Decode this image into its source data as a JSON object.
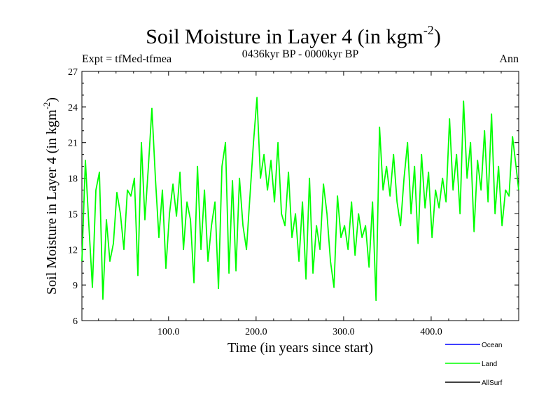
{
  "chart_data": {
    "type": "line",
    "title": "Soil Moisture in Layer 4 (in kgm",
    "title_sup": "-2",
    "title_end": ")",
    "subtitle_left": "Expt = tfMed-tfmea",
    "subtitle_center": "0436kyr BP - 0000kyr BP",
    "subtitle_right": "Ann",
    "xlabel": "Time (in years since start)",
    "ylabel": "Soil Moisture in Layer 4 (in kgm",
    "ylabel_sup": "-2",
    "ylabel_end": ")",
    "xlim": [
      1,
      500
    ],
    "ylim": [
      6,
      27
    ],
    "x_ticks": [
      {
        "value": 100,
        "label": "100.0"
      },
      {
        "value": 200,
        "label": "200.0"
      },
      {
        "value": 300,
        "label": "300.0"
      },
      {
        "value": 400,
        "label": "400.0"
      }
    ],
    "y_ticks": [
      {
        "value": 6,
        "label": "6"
      },
      {
        "value": 9,
        "label": "9"
      },
      {
        "value": 12,
        "label": "12"
      },
      {
        "value": 15,
        "label": "15"
      },
      {
        "value": 18,
        "label": "18"
      },
      {
        "value": 21,
        "label": "21"
      },
      {
        "value": 24,
        "label": "24"
      },
      {
        "value": 27,
        "label": "27"
      }
    ],
    "grid": false,
    "legend_position": "bottom-right",
    "series": [
      {
        "name": "Ocean",
        "color": "#0000ff",
        "x": [],
        "values": []
      },
      {
        "name": "Land",
        "color": "#00ff00",
        "x": [
          1,
          5,
          9,
          13,
          17,
          21,
          25,
          29,
          33,
          37,
          41,
          45,
          49,
          53,
          57,
          61,
          65,
          69,
          73,
          77,
          81,
          85,
          89,
          93,
          97,
          101,
          105,
          109,
          113,
          117,
          121,
          125,
          129,
          133,
          137,
          141,
          145,
          149,
          153,
          157,
          161,
          165,
          169,
          173,
          177,
          181,
          185,
          189,
          193,
          197,
          201,
          205,
          209,
          213,
          217,
          221,
          225,
          229,
          233,
          237,
          241,
          245,
          249,
          253,
          257,
          261,
          265,
          269,
          273,
          277,
          281,
          285,
          289,
          293,
          297,
          301,
          305,
          309,
          313,
          317,
          321,
          325,
          329,
          333,
          337,
          341,
          345,
          349,
          353,
          357,
          361,
          365,
          369,
          373,
          377,
          381,
          385,
          389,
          393,
          397,
          401,
          405,
          409,
          413,
          417,
          421,
          425,
          429,
          433,
          437,
          441,
          445,
          449,
          453,
          457,
          461,
          465,
          469,
          473,
          477,
          481,
          485,
          489,
          493,
          497,
          500
        ],
        "values": [
          11,
          19.5,
          14,
          8.8,
          17,
          18.5,
          7.8,
          14.5,
          11,
          12.5,
          16.8,
          15,
          12,
          17,
          16.5,
          18,
          9.8,
          21,
          14.5,
          19,
          23.9,
          18,
          13,
          17,
          10.4,
          15,
          17.5,
          14.8,
          18.5,
          12,
          16,
          14.5,
          9.2,
          19,
          12,
          17,
          11,
          14,
          16,
          8.7,
          19,
          21,
          10,
          17.8,
          10.2,
          18,
          14,
          12,
          16.5,
          21,
          24.8,
          18,
          20,
          17,
          19.5,
          16,
          21,
          15,
          14,
          18.5,
          13,
          15,
          11,
          16,
          9.5,
          18,
          10,
          14,
          12,
          17.5,
          15,
          11,
          8.8,
          16.5,
          13,
          14,
          12,
          16,
          11.5,
          15,
          13,
          14,
          10.5,
          16,
          7.7,
          22.3,
          17,
          19,
          16.5,
          20,
          16,
          14,
          18,
          21,
          15,
          19,
          12.5,
          20,
          15.5,
          18.5,
          13,
          17,
          15.5,
          18,
          16,
          23,
          17,
          20,
          15,
          24.5,
          18,
          21,
          13.5,
          19.5,
          17,
          22,
          16,
          23.4,
          15,
          19,
          14,
          17,
          16.5,
          21.5,
          19,
          17
        ]
      },
      {
        "name": "AllSurf",
        "color": "#000000",
        "x": [],
        "values": []
      }
    ]
  }
}
